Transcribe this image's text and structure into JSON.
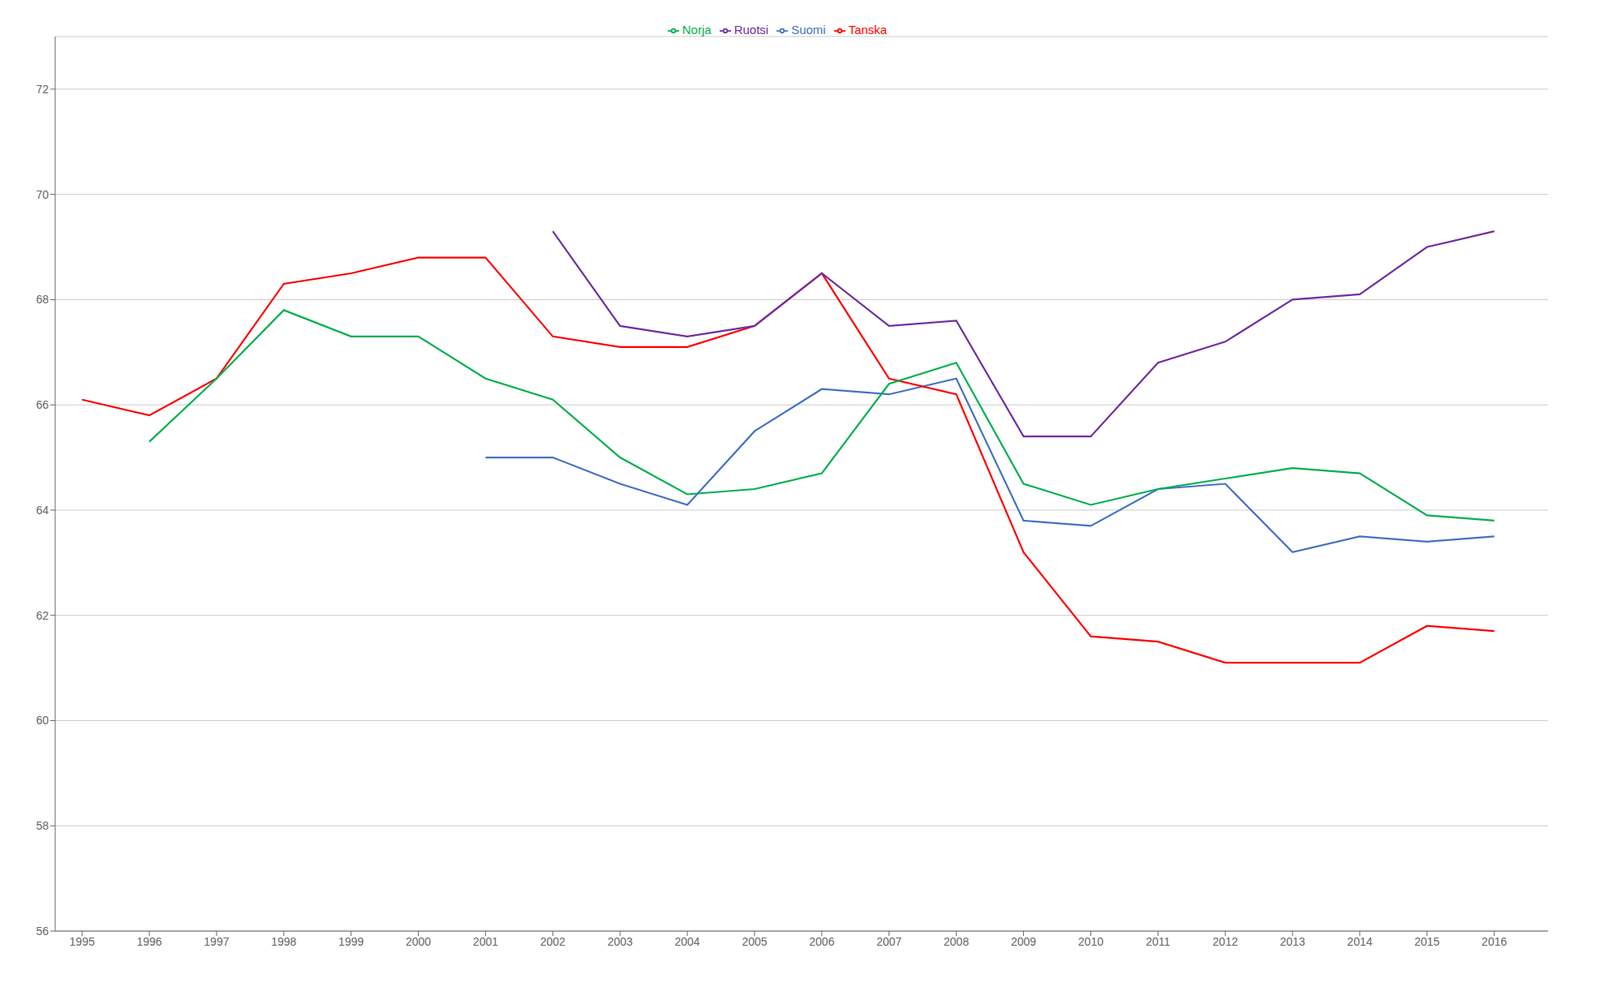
{
  "chart_data": {
    "type": "line",
    "x": [
      1995,
      1996,
      1997,
      1998,
      1999,
      2000,
      2001,
      2002,
      2003,
      2004,
      2005,
      2006,
      2007,
      2008,
      2009,
      2010,
      2011,
      2012,
      2013,
      2014,
      2015,
      2016
    ],
    "xlim": [
      1994.6,
      2016.8
    ],
    "xticks": [
      1995,
      1996,
      1997,
      1998,
      1999,
      2000,
      2001,
      2002,
      2003,
      2004,
      2005,
      2006,
      2007,
      2008,
      2009,
      2010,
      2011,
      2012,
      2013,
      2014,
      2015,
      2016
    ],
    "ylim": [
      56,
      73
    ],
    "yticks": [
      56,
      58,
      60,
      62,
      64,
      66,
      68,
      70,
      72
    ],
    "grid": true,
    "legend": "top",
    "series": [
      {
        "name": "Suomi",
        "color": "#4472C4",
        "values": [
          null,
          null,
          null,
          null,
          null,
          null,
          65.0,
          65.0,
          64.5,
          64.1,
          65.5,
          66.3,
          66.2,
          66.5,
          63.8,
          63.7,
          64.4,
          64.5,
          63.2,
          63.5,
          63.4,
          63.5
        ]
      },
      {
        "name": "Tanska",
        "color": "#FF0000",
        "values": [
          66.1,
          65.8,
          66.5,
          68.3,
          68.5,
          68.8,
          68.8,
          67.3,
          67.1,
          67.1,
          67.5,
          68.5,
          66.5,
          66.2,
          63.2,
          61.6,
          61.5,
          61.1,
          61.1,
          61.1,
          61.8,
          61.7
        ]
      },
      {
        "name": "Norja",
        "color": "#00B050",
        "values": [
          null,
          65.3,
          66.5,
          67.8,
          67.3,
          67.3,
          66.5,
          66.1,
          65.0,
          64.3,
          64.4,
          64.7,
          66.4,
          66.8,
          64.5,
          64.1,
          64.4,
          64.6,
          64.8,
          64.7,
          63.9,
          63.8
        ]
      },
      {
        "name": "Ruotsi",
        "color": "#7030A0",
        "values": [
          null,
          null,
          null,
          null,
          null,
          null,
          null,
          69.3,
          67.5,
          67.3,
          67.5,
          68.5,
          67.5,
          67.6,
          65.4,
          65.4,
          66.8,
          67.2,
          68.0,
          68.1,
          69.0,
          69.3
        ]
      }
    ]
  }
}
